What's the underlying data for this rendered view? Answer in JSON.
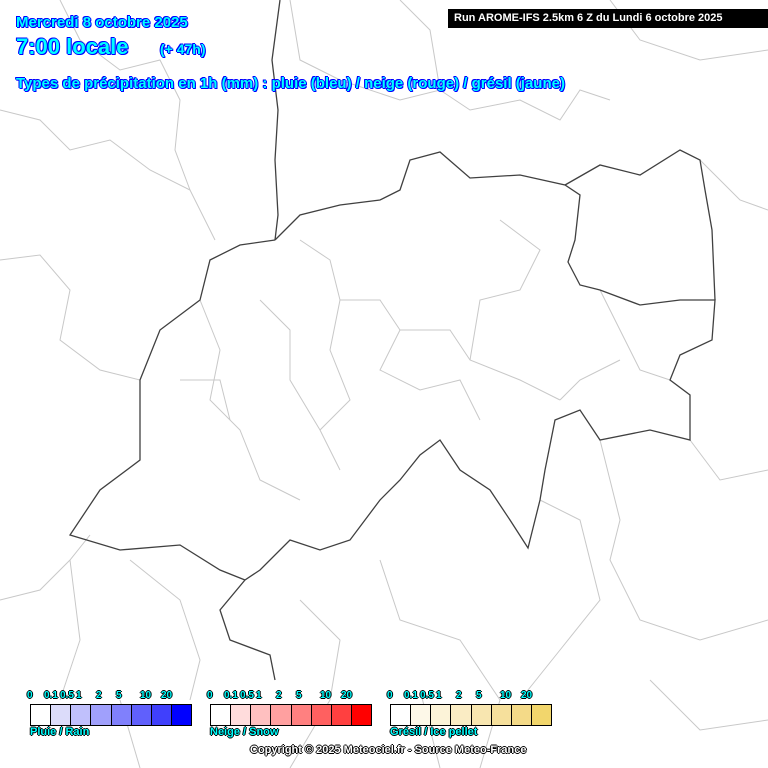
{
  "header": {
    "date": "Mercredi 8 octobre 2025",
    "time": "7:00 locale",
    "lead": "(+ 47h)",
    "product": "Types de précipitation en 1h (mm) : pluie (bleu) / neige (rouge) / grésil (jaune)",
    "run": "Run AROME-IFS 2.5km 6 Z du Lundi 6 octobre 2025"
  },
  "legends": [
    {
      "name": "Pluie / Rain",
      "ticks": [
        "0",
        "0.1",
        "0.5",
        "1",
        "2",
        "5",
        "10",
        "20"
      ],
      "colors": [
        "#ffffff",
        "#dcdcfa",
        "#c0c0fc",
        "#a0a0fc",
        "#8080fc",
        "#6060fc",
        "#4040fc",
        "#0000ff"
      ]
    },
    {
      "name": "Neige / Snow",
      "ticks": [
        "0",
        "0.1",
        "0.5",
        "1",
        "2",
        "5",
        "10",
        "20"
      ],
      "colors": [
        "#ffffff",
        "#ffdcdc",
        "#ffc0c0",
        "#ffa0a0",
        "#ff8080",
        "#ff6060",
        "#ff4040",
        "#ff0000"
      ]
    },
    {
      "name": "Grésil / Ice pellet",
      "ticks": [
        "0",
        "0.1",
        "0.5",
        "1",
        "2",
        "5",
        "10",
        "20"
      ],
      "colors": [
        "#ffffff",
        "#fdf8e8",
        "#fcf3d8",
        "#faecc4",
        "#f8e6b0",
        "#f6e09c",
        "#f4da88",
        "#f2d66c"
      ]
    }
  ],
  "copyright": "Copyright © 2025 Meteociel.fr - Source Meteo-France",
  "colors": {
    "country_border": "#404040",
    "region_border": "#c8c8c8",
    "title": "#00ffff"
  }
}
